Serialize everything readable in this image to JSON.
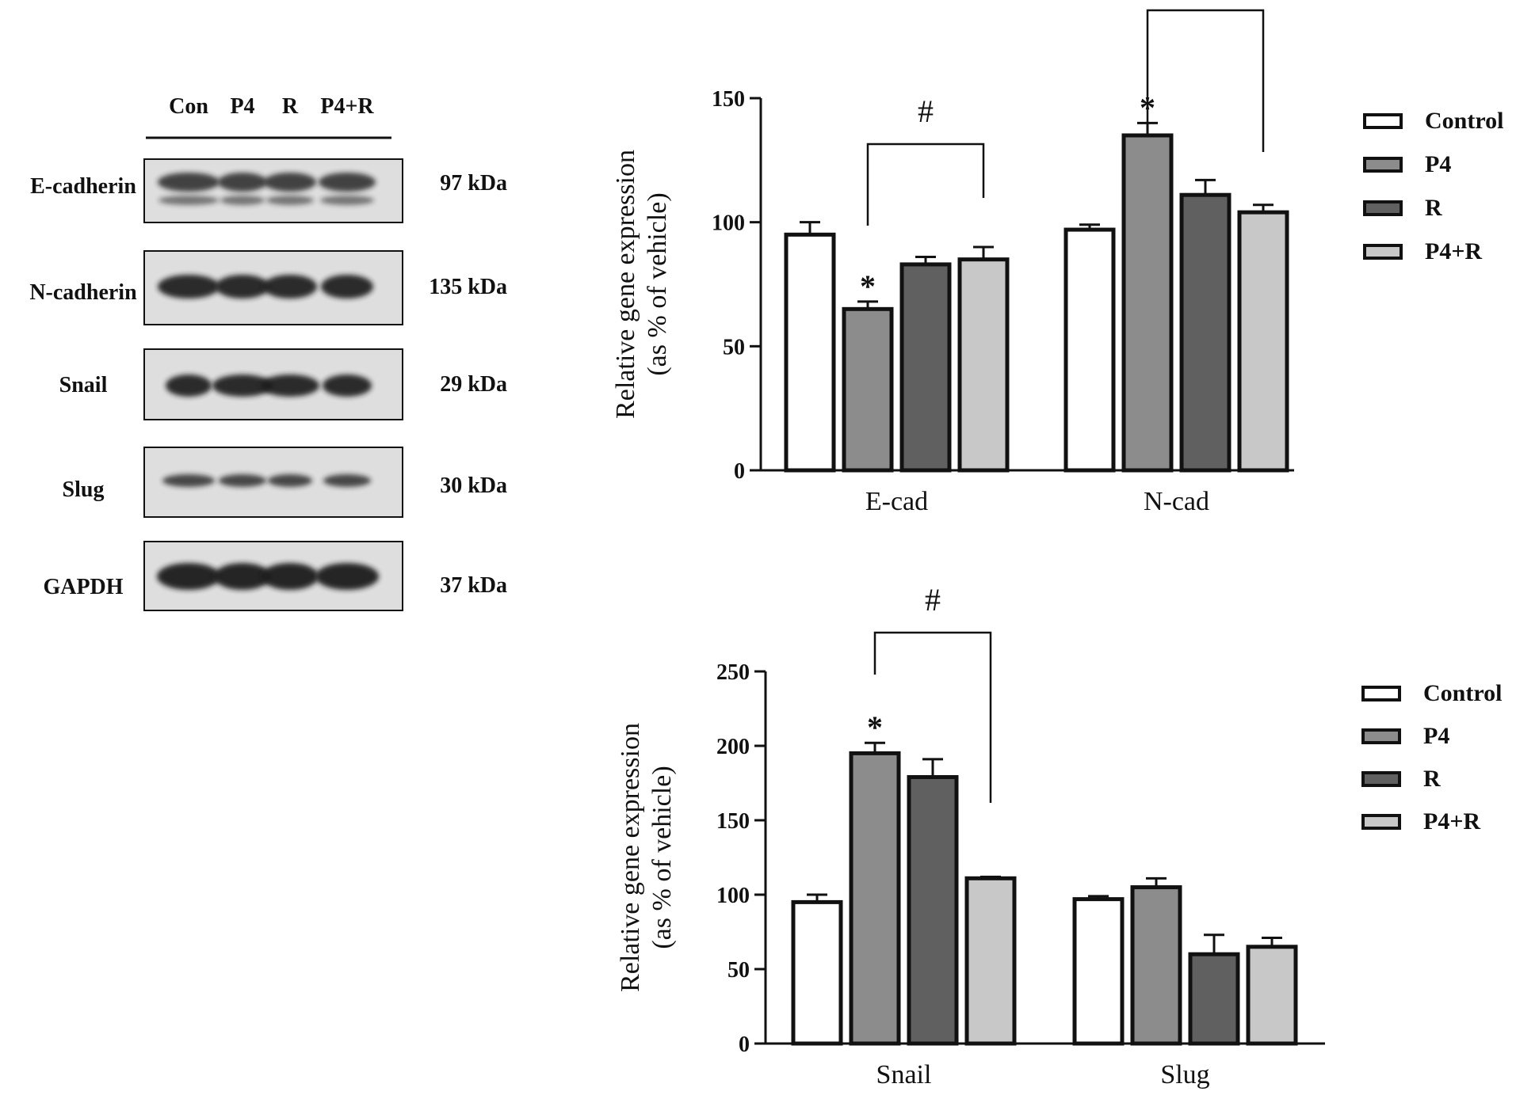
{
  "blot": {
    "lanes": [
      "Con",
      "P4",
      "R",
      "P4+R"
    ],
    "rows": [
      {
        "protein": "E-cadherin",
        "size": "97 kDa"
      },
      {
        "protein": "N-cadherin",
        "size": "135 kDa"
      },
      {
        "protein": "Snail",
        "size": "29 kDa"
      },
      {
        "protein": "Slug",
        "size": "30 kDa"
      },
      {
        "protein": "GAPDH",
        "size": "37 kDa"
      }
    ]
  },
  "colors": {
    "Control": "#ffffff",
    "P4": "#8c8c8c",
    "R": "#606060",
    "P4+R": "#c8c8c8"
  },
  "chart_data": [
    {
      "type": "bar",
      "categories": [
        "E-cad",
        "N-cad"
      ],
      "series": [
        {
          "name": "Control",
          "values": [
            95,
            97
          ],
          "errors": [
            5,
            2
          ]
        },
        {
          "name": "P4",
          "values": [
            65,
            135
          ],
          "errors": [
            3,
            5
          ]
        },
        {
          "name": "R",
          "values": [
            83,
            111
          ],
          "errors": [
            3,
            6
          ]
        },
        {
          "name": "P4+R",
          "values": [
            85,
            104
          ],
          "errors": [
            5,
            3
          ]
        }
      ],
      "ylabel": [
        "Relative gene expression",
        "(as % of vehicle)"
      ],
      "ylim": [
        0,
        150
      ],
      "yticks": [
        0,
        50,
        100,
        150
      ],
      "legend": "right",
      "grid": false,
      "annotations": [
        {
          "type": "asterisk",
          "text": "*",
          "category": 0,
          "series": 1
        },
        {
          "type": "asterisk",
          "text": "*",
          "category": 1,
          "series": 1
        },
        {
          "type": "bracket",
          "text": "#",
          "category": 0,
          "from_series": 1,
          "to_series": 3
        },
        {
          "type": "bracket",
          "text": "",
          "category": 1,
          "from_series": 1,
          "to_series": 3
        }
      ]
    },
    {
      "type": "bar",
      "categories": [
        "Snail",
        "Slug"
      ],
      "series": [
        {
          "name": "Control",
          "values": [
            95,
            97
          ],
          "errors": [
            5,
            2
          ]
        },
        {
          "name": "P4",
          "values": [
            195,
            105
          ],
          "errors": [
            7,
            6
          ]
        },
        {
          "name": "R",
          "values": [
            179,
            60
          ],
          "errors": [
            12,
            13
          ]
        },
        {
          "name": "P4+R",
          "values": [
            111,
            65
          ],
          "errors": [
            1,
            6
          ]
        }
      ],
      "ylabel": [
        "Relative gene expression",
        "(as % of vehicle)"
      ],
      "ylim": [
        0,
        250
      ],
      "yticks": [
        0,
        50,
        100,
        150,
        200,
        250
      ],
      "legend": "right",
      "grid": false,
      "annotations": [
        {
          "type": "asterisk",
          "text": "*",
          "category": 0,
          "series": 1
        },
        {
          "type": "bracket",
          "text": "#",
          "category": 0,
          "from_series": 1,
          "to_series": 3
        }
      ]
    }
  ]
}
